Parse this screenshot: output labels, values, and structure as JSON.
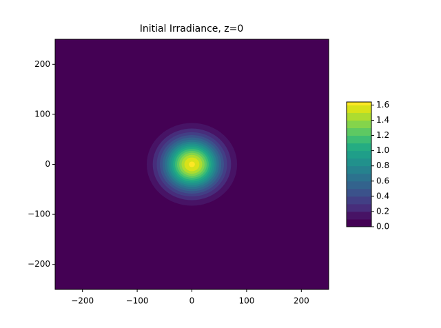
{
  "chart_data": {
    "type": "contourf",
    "title": "Initial Irradiance, z=0",
    "xlim": [
      -250,
      250
    ],
    "ylim": [
      -250,
      250
    ],
    "xticks": [
      {
        "value": -200,
        "label": "−200"
      },
      {
        "value": -100,
        "label": "−100"
      },
      0,
      100,
      200
    ],
    "yticks": [
      {
        "value": -200,
        "label": "−200"
      },
      {
        "value": -100,
        "label": "−100"
      },
      0,
      100,
      200
    ],
    "center": [
      0,
      0
    ],
    "levels": [
      0,
      0.1,
      0.2,
      0.3,
      0.4,
      0.5,
      0.6,
      0.7,
      0.8,
      0.9,
      1.0,
      1.1,
      1.2,
      1.3,
      1.4,
      1.5,
      1.6
    ],
    "radii": [
      null,
      82.6,
      71.6,
      64.3,
      58.5,
      53.7,
      49.3,
      45.3,
      41.6,
      37.9,
      34.4,
      30.8,
      27.1,
      23.2,
      18.9,
      13.7,
      5.5
    ],
    "colors": [
      "#440154",
      "#471365",
      "#472d7b",
      "#423f85",
      "#3b528b",
      "#33638d",
      "#2c728e",
      "#26828e",
      "#21918c",
      "#1f9e89",
      "#25ac82",
      "#3dbc74",
      "#5ec962",
      "#84d44b",
      "#addc30",
      "#d8e219",
      "#fde725"
    ],
    "clim": [
      0,
      1.64
    ],
    "cticks": [
      {
        "value": 0,
        "label": "0.0"
      },
      {
        "value": 0.2,
        "label": "0.2"
      },
      {
        "value": 0.4,
        "label": "0.4"
      },
      {
        "value": 0.6,
        "label": "0.6"
      },
      {
        "value": 0.8,
        "label": "0.8"
      },
      {
        "value": 1.0,
        "label": "1.0"
      },
      {
        "value": 1.2,
        "label": "1.2"
      },
      {
        "value": 1.4,
        "label": "1.4"
      },
      {
        "value": 1.6,
        "label": "1.6"
      }
    ]
  }
}
